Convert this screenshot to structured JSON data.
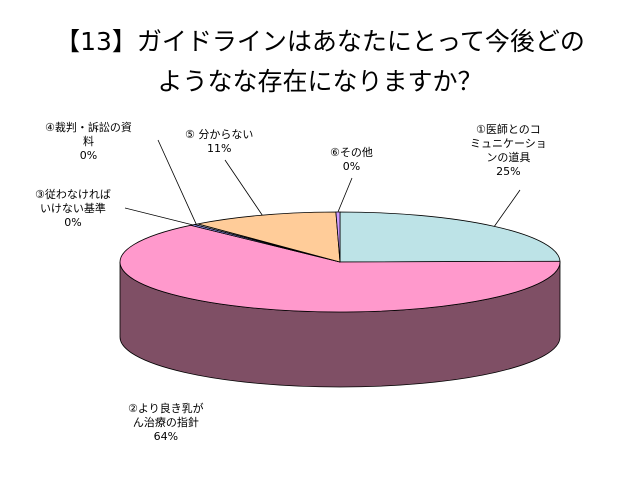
{
  "chart_data": {
    "type": "pie",
    "style": "3d",
    "title_lines": [
      "【13】ガイドラインはあなたにとって今後どの",
      "ようなな存在になりますか？"
    ],
    "slices": [
      {
        "label_lines": [
          "①医師とのコ",
          "ミュニケーショ",
          "ンの道具"
        ],
        "value": 25,
        "value_label": "25%",
        "color": "#bde3e7",
        "side_color": "#8ab1b5"
      },
      {
        "label_lines": [
          "②より良き乳が",
          "ん治療の指針"
        ],
        "value": 64,
        "value_label": "64%",
        "color": "#ff99cc",
        "side_color": "#7f4f65"
      },
      {
        "label_lines": [
          "③従わなければ",
          "いけない基準"
        ],
        "value": 0.4,
        "value_label": "0%",
        "color": "#9999ff",
        "side_color": "#4d4d80"
      },
      {
        "label_lines": [
          "④裁判・訴訟の資",
          "料"
        ],
        "value": 0.3,
        "value_label": "0%",
        "color": "#e0e0e0",
        "side_color": "#808080"
      },
      {
        "label_lines": [
          "⑤ 分からない"
        ],
        "value": 11,
        "value_label": "11%",
        "color": "#ffcc99",
        "side_color": "#b08560"
      },
      {
        "label_lines": [
          "⑥その他"
        ],
        "value": 0.3,
        "value_label": "0%",
        "color": "#cc99ff",
        "side_color": "#705090"
      }
    ],
    "legend": "none"
  }
}
